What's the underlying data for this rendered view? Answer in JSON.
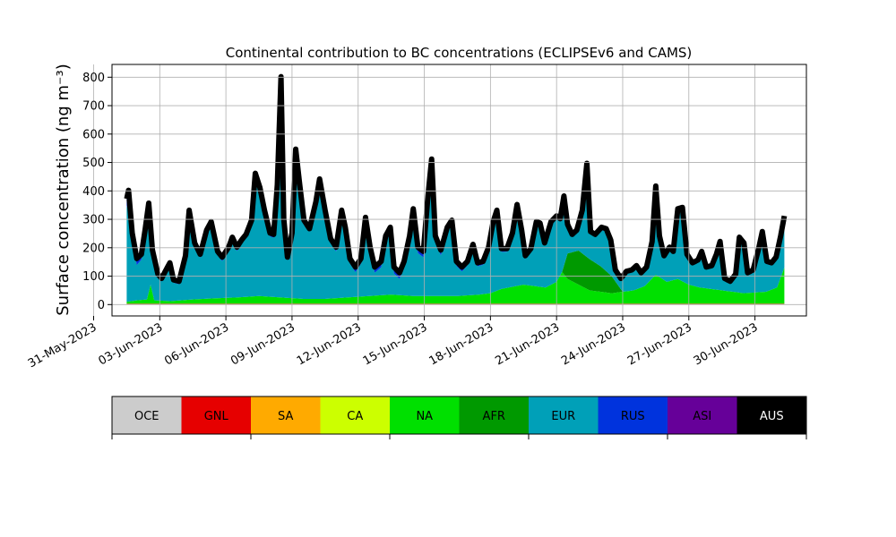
{
  "chart_data": {
    "type": "area",
    "stacked": true,
    "title": "Continental contribution to BC concentrations (ECLIPSEv6 and CAMS)",
    "ylabel": "Surface concentration (ng m⁻³)",
    "xlabel": "",
    "ylim": [
      -40,
      845
    ],
    "xlim": [
      "2023-05-31T20:00",
      "2023-07-02T08:00"
    ],
    "grid": true,
    "yticks": [
      0,
      100,
      200,
      300,
      400,
      500,
      600,
      700,
      800
    ],
    "yticklabels": [
      "0",
      "100",
      "200",
      "300",
      "400",
      "500",
      "600",
      "700",
      "800"
    ],
    "xticks": [
      "2023-05-31",
      "2023-06-03",
      "2023-06-06",
      "2023-06-09",
      "2023-06-12",
      "2023-06-15",
      "2023-06-18",
      "2023-06-21",
      "2023-06-24",
      "2023-06-27",
      "2023-06-30"
    ],
    "xticklabels": [
      "31-May-2023",
      "03-Jun-2023",
      "06-Jun-2023",
      "09-Jun-2023",
      "12-Jun-2023",
      "15-Jun-2023",
      "18-Jun-2023",
      "21-Jun-2023",
      "24-Jun-2023",
      "27-Jun-2023",
      "30-Jun-2023"
    ],
    "series_order": [
      "OCE",
      "GNL",
      "SA",
      "CA",
      "NA",
      "AFR",
      "EUR",
      "RUS",
      "ASI",
      "AUS"
    ],
    "colors": {
      "OCE": "#cccccc",
      "GNL": "#e60000",
      "SA": "#ffaa00",
      "CA": "#ccff00",
      "NA": "#00e000",
      "AFR": "#009900",
      "EUR": "#00a0b8",
      "RUS": "#0033dd",
      "ASI": "#660099",
      "AUS": "#000000"
    },
    "total_points": [
      [
        "2023-06-01T12:00",
        370
      ],
      [
        "2023-06-01T14:00",
        400
      ],
      [
        "2023-06-01T18:00",
        250
      ],
      [
        "2023-06-01T23:00",
        160
      ],
      [
        "2023-06-02T04:00",
        175
      ],
      [
        "2023-06-02T08:00",
        260
      ],
      [
        "2023-06-02T12:00",
        355
      ],
      [
        "2023-06-02T16:00",
        190
      ],
      [
        "2023-06-02T22:00",
        105
      ],
      [
        "2023-06-03T02:00",
        90
      ],
      [
        "2023-06-03T06:00",
        115
      ],
      [
        "2023-06-03T11:00",
        145
      ],
      [
        "2023-06-03T15:00",
        85
      ],
      [
        "2023-06-03T21:00",
        80
      ],
      [
        "2023-06-04T04:00",
        170
      ],
      [
        "2023-06-04T08:00",
        330
      ],
      [
        "2023-06-04T14:00",
        215
      ],
      [
        "2023-06-04T20:00",
        175
      ],
      [
        "2023-06-05T03:00",
        260
      ],
      [
        "2023-06-05T08:00",
        290
      ],
      [
        "2023-06-05T15:00",
        185
      ],
      [
        "2023-06-05T20:00",
        165
      ],
      [
        "2023-06-06T03:00",
        200
      ],
      [
        "2023-06-06T07:00",
        235
      ],
      [
        "2023-06-06T12:00",
        200
      ],
      [
        "2023-06-06T17:00",
        225
      ],
      [
        "2023-06-06T22:00",
        245
      ],
      [
        "2023-06-07T04:00",
        295
      ],
      [
        "2023-06-07T08:00",
        460
      ],
      [
        "2023-06-07T13:00",
        410
      ],
      [
        "2023-06-07T18:00",
        330
      ],
      [
        "2023-06-08T00:00",
        250
      ],
      [
        "2023-06-08T04:00",
        245
      ],
      [
        "2023-06-08T08:00",
        420
      ],
      [
        "2023-06-08T12:00",
        800
      ],
      [
        "2023-06-08T15:00",
        300
      ],
      [
        "2023-06-08T19:00",
        165
      ],
      [
        "2023-06-09T00:00",
        250
      ],
      [
        "2023-06-09T04:00",
        545
      ],
      [
        "2023-06-09T08:00",
        430
      ],
      [
        "2023-06-09T13:00",
        295
      ],
      [
        "2023-06-09T19:00",
        265
      ],
      [
        "2023-06-10T02:00",
        360
      ],
      [
        "2023-06-10T06:00",
        440
      ],
      [
        "2023-06-10T12:00",
        330
      ],
      [
        "2023-06-10T18:00",
        230
      ],
      [
        "2023-06-11T00:00",
        200
      ],
      [
        "2023-06-11T06:00",
        330
      ],
      [
        "2023-06-11T10:00",
        270
      ],
      [
        "2023-06-11T15:00",
        160
      ],
      [
        "2023-06-11T21:00",
        130
      ],
      [
        "2023-06-12T03:00",
        160
      ],
      [
        "2023-06-12T08:00",
        305
      ],
      [
        "2023-06-12T13:00",
        200
      ],
      [
        "2023-06-12T18:00",
        130
      ],
      [
        "2023-06-13T01:00",
        150
      ],
      [
        "2023-06-13T06:00",
        240
      ],
      [
        "2023-06-13T11:00",
        270
      ],
      [
        "2023-06-13T15:00",
        130
      ],
      [
        "2023-06-13T21:00",
        110
      ],
      [
        "2023-06-14T02:00",
        150
      ],
      [
        "2023-06-14T08:00",
        240
      ],
      [
        "2023-06-14T12:00",
        335
      ],
      [
        "2023-06-14T17:00",
        200
      ],
      [
        "2023-06-14T23:00",
        185
      ],
      [
        "2023-06-15T04:00",
        380
      ],
      [
        "2023-06-15T08:00",
        510
      ],
      [
        "2023-06-15T12:00",
        240
      ],
      [
        "2023-06-15T18:00",
        190
      ],
      [
        "2023-06-16T01:00",
        270
      ],
      [
        "2023-06-16T06:00",
        295
      ],
      [
        "2023-06-16T11:00",
        150
      ],
      [
        "2023-06-16T17:00",
        130
      ],
      [
        "2023-06-16T23:00",
        150
      ],
      [
        "2023-06-17T05:00",
        210
      ],
      [
        "2023-06-17T10:00",
        145
      ],
      [
        "2023-06-17T16:00",
        150
      ],
      [
        "2023-06-17T22:00",
        200
      ],
      [
        "2023-06-18T03:00",
        290
      ],
      [
        "2023-06-18T07:00",
        330
      ],
      [
        "2023-06-18T12:00",
        195
      ],
      [
        "2023-06-18T18:00",
        195
      ],
      [
        "2023-06-19T00:00",
        250
      ],
      [
        "2023-06-19T05:00",
        350
      ],
      [
        "2023-06-19T10:00",
        260
      ],
      [
        "2023-06-19T14:00",
        170
      ],
      [
        "2023-06-19T20:00",
        195
      ],
      [
        "2023-06-20T02:00",
        290
      ],
      [
        "2023-06-20T06:00",
        285
      ],
      [
        "2023-06-20T11:00",
        215
      ],
      [
        "2023-06-20T18:00",
        290
      ],
      [
        "2023-06-21T00:00",
        310
      ],
      [
        "2023-06-21T04:00",
        300
      ],
      [
        "2023-06-21T08:00",
        380
      ],
      [
        "2023-06-21T12:00",
        280
      ],
      [
        "2023-06-21T17:00",
        245
      ],
      [
        "2023-06-21T22:00",
        260
      ],
      [
        "2023-06-22T04:00",
        330
      ],
      [
        "2023-06-22T09:00",
        495
      ],
      [
        "2023-06-22T13:00",
        255
      ],
      [
        "2023-06-22T18:00",
        245
      ],
      [
        "2023-06-23T01:00",
        270
      ],
      [
        "2023-06-23T06:00",
        265
      ],
      [
        "2023-06-23T11:00",
        225
      ],
      [
        "2023-06-23T16:00",
        120
      ],
      [
        "2023-06-23T22:00",
        90
      ],
      [
        "2023-06-24T04:00",
        115
      ],
      [
        "2023-06-24T10:00",
        120
      ],
      [
        "2023-06-24T15:00",
        135
      ],
      [
        "2023-06-24T20:00",
        110
      ],
      [
        "2023-06-25T02:00",
        130
      ],
      [
        "2023-06-25T08:00",
        220
      ],
      [
        "2023-06-25T12:00",
        415
      ],
      [
        "2023-06-25T16:00",
        240
      ],
      [
        "2023-06-25T21:00",
        170
      ],
      [
        "2023-06-26T03:00",
        200
      ],
      [
        "2023-06-26T07:00",
        185
      ],
      [
        "2023-06-26T12:00",
        335
      ],
      [
        "2023-06-26T17:00",
        340
      ],
      [
        "2023-06-26T22:00",
        175
      ],
      [
        "2023-06-27T04:00",
        145
      ],
      [
        "2023-06-27T10:00",
        155
      ],
      [
        "2023-06-27T14:00",
        185
      ],
      [
        "2023-06-27T19:00",
        130
      ],
      [
        "2023-06-28T01:00",
        135
      ],
      [
        "2023-06-28T06:00",
        175
      ],
      [
        "2023-06-28T10:00",
        220
      ],
      [
        "2023-06-28T15:00",
        90
      ],
      [
        "2023-06-28T21:00",
        80
      ],
      [
        "2023-06-29T03:00",
        105
      ],
      [
        "2023-06-29T07:00",
        235
      ],
      [
        "2023-06-29T12:00",
        215
      ],
      [
        "2023-06-29T16:00",
        110
      ],
      [
        "2023-06-29T22:00",
        120
      ],
      [
        "2023-06-30T04:00",
        195
      ],
      [
        "2023-06-30T08:00",
        255
      ],
      [
        "2023-06-30T13:00",
        150
      ],
      [
        "2023-06-30T18:00",
        145
      ],
      [
        "2023-06-30T23:00",
        165
      ],
      [
        "2023-07-01T04:00",
        240
      ],
      [
        "2023-07-01T08:00",
        310
      ]
    ],
    "na_points": [
      [
        "2023-06-01T12:00",
        10
      ],
      [
        "2023-06-02T00:00",
        15
      ],
      [
        "2023-06-02T10:00",
        18
      ],
      [
        "2023-06-02T14:00",
        70
      ],
      [
        "2023-06-02T18:00",
        15
      ],
      [
        "2023-06-03T12:00",
        12
      ],
      [
        "2023-06-04T12:00",
        18
      ],
      [
        "2023-06-05T12:00",
        22
      ],
      [
        "2023-06-06T12:00",
        25
      ],
      [
        "2023-06-07T12:00",
        30
      ],
      [
        "2023-06-08T12:00",
        25
      ],
      [
        "2023-06-09T12:00",
        20
      ],
      [
        "2023-06-10T12:00",
        20
      ],
      [
        "2023-06-11T12:00",
        25
      ],
      [
        "2023-06-12T12:00",
        30
      ],
      [
        "2023-06-13T12:00",
        35
      ],
      [
        "2023-06-14T12:00",
        30
      ],
      [
        "2023-06-15T12:00",
        30
      ],
      [
        "2023-06-16T12:00",
        30
      ],
      [
        "2023-06-17T12:00",
        35
      ],
      [
        "2023-06-18T00:00",
        40
      ],
      [
        "2023-06-18T12:00",
        55
      ],
      [
        "2023-06-19T12:00",
        70
      ],
      [
        "2023-06-20T12:00",
        60
      ],
      [
        "2023-06-21T00:00",
        80
      ],
      [
        "2023-06-21T06:00",
        115
      ],
      [
        "2023-06-21T12:00",
        90
      ],
      [
        "2023-06-22T12:00",
        50
      ],
      [
        "2023-06-23T12:00",
        40
      ],
      [
        "2023-06-24T12:00",
        50
      ],
      [
        "2023-06-25T00:00",
        65
      ],
      [
        "2023-06-25T12:00",
        105
      ],
      [
        "2023-06-26T00:00",
        80
      ],
      [
        "2023-06-26T12:00",
        90
      ],
      [
        "2023-06-27T00:00",
        70
      ],
      [
        "2023-06-27T12:00",
        60
      ],
      [
        "2023-06-28T12:00",
        50
      ],
      [
        "2023-06-29T12:00",
        40
      ],
      [
        "2023-06-30T12:00",
        45
      ],
      [
        "2023-07-01T00:00",
        60
      ],
      [
        "2023-07-01T08:00",
        130
      ]
    ],
    "afr_points": [
      [
        "2023-06-21T06:00",
        0
      ],
      [
        "2023-06-21T12:00",
        90
      ],
      [
        "2023-06-22T00:00",
        120
      ],
      [
        "2023-06-22T12:00",
        110
      ],
      [
        "2023-06-23T00:00",
        90
      ],
      [
        "2023-06-23T12:00",
        60
      ],
      [
        "2023-06-24T00:00",
        0
      ]
    ],
    "rus_points": [
      [
        "2023-06-01T12:00",
        30
      ],
      [
        "2023-06-02T12:00",
        10
      ],
      [
        "2023-06-03T12:00",
        8
      ],
      [
        "2023-06-05T12:00",
        12
      ],
      [
        "2023-06-08T00:00",
        10
      ],
      [
        "2023-06-09T12:00",
        8
      ],
      [
        "2023-06-11T12:00",
        15
      ],
      [
        "2023-06-13T12:00",
        20
      ],
      [
        "2023-06-15T12:00",
        18
      ],
      [
        "2023-06-17T12:00",
        10
      ],
      [
        "2023-06-20T12:00",
        8
      ],
      [
        "2023-06-23T00:00",
        8
      ],
      [
        "2023-06-25T00:00",
        5
      ],
      [
        "2023-06-28T00:00",
        6
      ],
      [
        "2023-07-01T08:00",
        8
      ]
    ],
    "aus_width": 6,
    "legend": {
      "labels": [
        "OCE",
        "GNL",
        "SA",
        "CA",
        "NA",
        "AFR",
        "EUR",
        "RUS",
        "ASI",
        "AUS"
      ],
      "placement": "bottom"
    }
  }
}
